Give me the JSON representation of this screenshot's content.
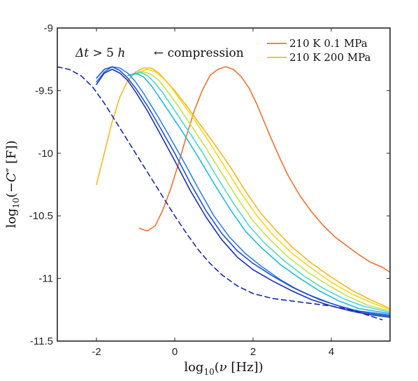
{
  "chart_data": {
    "type": "line",
    "title": "",
    "xlabel": "log₁₀(ν [Hz])",
    "ylabel": "log₁₀(−C″ [F])",
    "xlim": [
      -3,
      5.5
    ],
    "ylim": [
      -11.5,
      -9
    ],
    "xticks": [
      -2,
      0,
      2,
      4
    ],
    "yticks": [
      -11.5,
      -11,
      -10.5,
      -10,
      -9.5,
      -9
    ],
    "xtick_labels": [
      "-2",
      "0",
      "2",
      "4"
    ],
    "ytick_labels": [
      "-11.5",
      "-11",
      "-10.5",
      "-10",
      "-9.5",
      "-9"
    ],
    "grid": false,
    "legend_position": "top-right",
    "annotations": [
      "Δt > 5 h",
      "← compression"
    ],
    "series": [
      {
        "name": "210 K 0.1 MPa",
        "color": "#f07030",
        "style": "solid",
        "x": [
          -0.9,
          -0.7,
          -0.5,
          -0.3,
          -0.1,
          0.1,
          0.3,
          0.5,
          0.7,
          0.9,
          1.1,
          1.3,
          1.5,
          1.7,
          1.9,
          2.1,
          2.3,
          2.5,
          2.7,
          2.9,
          3.2,
          3.5,
          3.8,
          4.1,
          4.4,
          4.7,
          5.0,
          5.3,
          5.5
        ],
        "y": [
          -10.6,
          -10.62,
          -10.58,
          -10.45,
          -10.28,
          -10.08,
          -9.86,
          -9.66,
          -9.5,
          -9.38,
          -9.33,
          -9.31,
          -9.33,
          -9.39,
          -9.48,
          -9.61,
          -9.76,
          -9.91,
          -10.05,
          -10.18,
          -10.34,
          -10.47,
          -10.58,
          -10.67,
          -10.74,
          -10.81,
          -10.87,
          -10.91,
          -10.95
        ]
      },
      {
        "name": "210 K 200 MPa",
        "color": "#f5b820",
        "style": "solid",
        "x": [
          -2.0,
          -1.8,
          -1.6,
          -1.4,
          -1.2,
          -1.0,
          -0.8,
          -0.6,
          -0.4,
          -0.2,
          0.0,
          0.3,
          0.6,
          1.0,
          1.4,
          1.8,
          2.2,
          2.6,
          3.0,
          3.5,
          4.0,
          4.5,
          5.0,
          5.5
        ],
        "y": [
          -10.25,
          -10.0,
          -9.75,
          -9.55,
          -9.42,
          -9.35,
          -9.32,
          -9.32,
          -9.36,
          -9.43,
          -9.5,
          -9.62,
          -9.75,
          -9.92,
          -10.1,
          -10.3,
          -10.48,
          -10.62,
          -10.75,
          -10.88,
          -10.99,
          -11.09,
          -11.17,
          -11.24
        ]
      },
      {
        "name": "",
        "color": "#f7d520",
        "style": "solid",
        "x": [
          -0.9,
          -0.7,
          -0.5,
          -0.3,
          -0.1,
          0.2,
          0.5,
          0.9,
          1.3,
          1.7,
          2.1,
          2.5,
          3.0,
          3.5,
          4.0,
          4.5,
          5.0,
          5.5
        ],
        "y": [
          -9.35,
          -9.33,
          -9.35,
          -9.4,
          -9.47,
          -9.6,
          -9.73,
          -9.92,
          -10.12,
          -10.32,
          -10.5,
          -10.65,
          -10.8,
          -10.92,
          -11.03,
          -11.12,
          -11.19,
          -11.25
        ]
      },
      {
        "name": "",
        "color": "#c8e04a",
        "style": "solid",
        "x": [
          -1.0,
          -0.8,
          -0.6,
          -0.4,
          -0.2,
          0.1,
          0.4,
          0.8,
          1.2,
          1.6,
          2.0,
          2.4,
          2.9,
          3.4,
          3.9,
          4.4,
          4.9,
          5.5
        ],
        "y": [
          -9.37,
          -9.35,
          -9.37,
          -9.42,
          -9.5,
          -9.63,
          -9.77,
          -9.96,
          -10.16,
          -10.36,
          -10.54,
          -10.68,
          -10.83,
          -10.95,
          -11.05,
          -11.14,
          -11.21,
          -11.26
        ]
      },
      {
        "name": "",
        "color": "#50d8c8",
        "style": "solid",
        "x": [
          -1.1,
          -0.9,
          -0.7,
          -0.5,
          -0.3,
          0.0,
          0.3,
          0.7,
          1.1,
          1.5,
          1.9,
          2.3,
          2.8,
          3.3,
          3.8,
          4.3,
          4.8,
          5.5
        ],
        "y": [
          -9.38,
          -9.35,
          -9.38,
          -9.44,
          -9.52,
          -9.66,
          -9.8,
          -9.99,
          -10.2,
          -10.4,
          -10.58,
          -10.72,
          -10.86,
          -10.98,
          -11.08,
          -11.16,
          -11.22,
          -11.27
        ]
      },
      {
        "name": "",
        "color": "#20b8e8",
        "style": "solid",
        "x": [
          -1.2,
          -1.0,
          -0.8,
          -0.6,
          -0.4,
          -0.1,
          0.2,
          0.6,
          1.0,
          1.4,
          1.8,
          2.2,
          2.7,
          3.2,
          3.7,
          4.2,
          4.7,
          5.5
        ],
        "y": [
          -9.38,
          -9.36,
          -9.39,
          -9.46,
          -9.55,
          -9.69,
          -9.83,
          -10.03,
          -10.24,
          -10.44,
          -10.62,
          -10.75,
          -10.89,
          -11.0,
          -11.1,
          -11.18,
          -11.24,
          -11.28
        ]
      },
      {
        "name": "",
        "color": "#3080e8",
        "style": "solid",
        "x": [
          -2.0,
          -1.8,
          -1.6,
          -1.4,
          -1.2,
          -1.0,
          -0.8,
          -0.5,
          -0.2,
          0.2,
          0.6,
          1.0,
          1.4,
          1.8,
          2.2,
          2.7,
          3.2,
          3.7,
          4.2,
          4.7,
          5.5
        ],
        "y": [
          -9.43,
          -9.35,
          -9.31,
          -9.32,
          -9.36,
          -9.43,
          -9.52,
          -9.67,
          -9.83,
          -10.05,
          -10.28,
          -10.5,
          -10.67,
          -10.8,
          -10.9,
          -11.01,
          -11.1,
          -11.17,
          -11.22,
          -11.26,
          -11.29
        ]
      },
      {
        "name": "",
        "color": "#2050d0",
        "style": "solid",
        "x": [
          -2.0,
          -1.8,
          -1.6,
          -1.4,
          -1.2,
          -1.0,
          -0.7,
          -0.4,
          0.0,
          0.4,
          0.8,
          1.2,
          1.6,
          2.0,
          2.5,
          3.0,
          3.5,
          4.0,
          4.5,
          5.0,
          5.5
        ],
        "y": [
          -9.4,
          -9.33,
          -9.31,
          -9.34,
          -9.4,
          -9.48,
          -9.62,
          -9.78,
          -10.0,
          -10.24,
          -10.46,
          -10.64,
          -10.78,
          -10.88,
          -10.98,
          -11.07,
          -11.14,
          -11.2,
          -11.25,
          -11.28,
          -11.3
        ]
      },
      {
        "name": "",
        "color": "#1a30b0",
        "style": "solid",
        "x": [
          -2.0,
          -1.8,
          -1.6,
          -1.4,
          -1.2,
          -1.0,
          -0.7,
          -0.4,
          0.0,
          0.4,
          0.8,
          1.2,
          1.6,
          2.0,
          2.5,
          3.0,
          3.5,
          4.0,
          4.5,
          5.0,
          5.5
        ],
        "y": [
          -9.45,
          -9.36,
          -9.33,
          -9.36,
          -9.42,
          -9.51,
          -9.66,
          -9.83,
          -10.06,
          -10.3,
          -10.51,
          -10.69,
          -10.83,
          -10.93,
          -11.02,
          -11.1,
          -11.17,
          -11.22,
          -11.26,
          -11.29,
          -11.31
        ]
      },
      {
        "name": "",
        "color": "#1a2aa0",
        "style": "dashed",
        "x": [
          -3.0,
          -2.7,
          -2.4,
          -2.1,
          -1.8,
          -1.5,
          -1.2,
          -0.9,
          -0.6,
          -0.3,
          0.0,
          0.3,
          0.6,
          0.9,
          1.2,
          1.6,
          2.0,
          2.5,
          3.0,
          3.5,
          4.0,
          4.5,
          5.0,
          5.3
        ],
        "y": [
          -9.31,
          -9.33,
          -9.38,
          -9.47,
          -9.6,
          -9.75,
          -9.9,
          -10.05,
          -10.2,
          -10.35,
          -10.5,
          -10.64,
          -10.77,
          -10.88,
          -10.97,
          -11.06,
          -11.12,
          -11.16,
          -11.18,
          -11.2,
          -11.22,
          -11.25,
          -11.3,
          -11.33
        ]
      }
    ]
  }
}
